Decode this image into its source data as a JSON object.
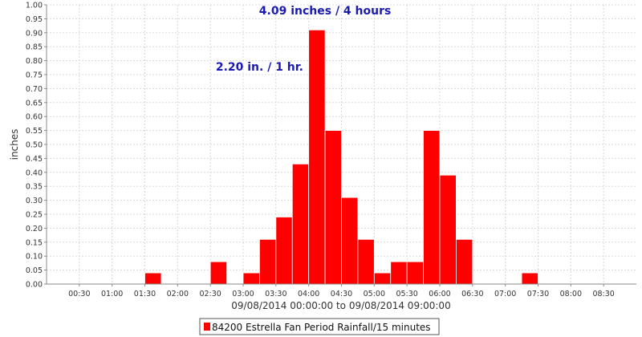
{
  "chart_data": {
    "type": "bar",
    "title": "",
    "xlabel": "09/08/2014 00:00:00 to 09/08/2014 09:00:00",
    "ylabel": "inches",
    "ylim": [
      0,
      1.0
    ],
    "yticks": [
      "0.00",
      "0.05",
      "0.10",
      "0.15",
      "0.20",
      "0.25",
      "0.30",
      "0.35",
      "0.40",
      "0.45",
      "0.50",
      "0.55",
      "0.60",
      "0.65",
      "0.70",
      "0.75",
      "0.80",
      "0.85",
      "0.90",
      "0.95",
      "1.00"
    ],
    "xticks": [
      "00:30",
      "01:00",
      "01:30",
      "02:00",
      "02:30",
      "03:00",
      "03:30",
      "04:00",
      "04:30",
      "05:00",
      "05:30",
      "06:00",
      "06:30",
      "07:00",
      "07:30",
      "08:00",
      "08:30"
    ],
    "x_start": "00:00",
    "x_end": "09:00",
    "interval": "15 minutes",
    "grid": true,
    "bar_color": "#ff0000",
    "series": [
      {
        "name": "84200 Estrella Fan Period Rainfall/15 minutes",
        "points": [
          {
            "time": "01:30",
            "value": 0.04
          },
          {
            "time": "02:30",
            "value": 0.08
          },
          {
            "time": "03:00",
            "value": 0.04
          },
          {
            "time": "03:15",
            "value": 0.16
          },
          {
            "time": "03:30",
            "value": 0.24
          },
          {
            "time": "03:45",
            "value": 0.43
          },
          {
            "time": "04:00",
            "value": 0.91
          },
          {
            "time": "04:15",
            "value": 0.55
          },
          {
            "time": "04:30",
            "value": 0.31
          },
          {
            "time": "04:45",
            "value": 0.16
          },
          {
            "time": "05:00",
            "value": 0.04
          },
          {
            "time": "05:15",
            "value": 0.08
          },
          {
            "time": "05:30",
            "value": 0.08
          },
          {
            "time": "05:45",
            "value": 0.55
          },
          {
            "time": "06:00",
            "value": 0.39
          },
          {
            "time": "06:15",
            "value": 0.16
          },
          {
            "time": "07:15",
            "value": 0.04
          }
        ]
      }
    ],
    "annotations": [
      {
        "text": "4.09 inches / 4 hours",
        "time": "04:15",
        "value": 0.965
      },
      {
        "text": "2.20 in. / 1 hr.",
        "time": "03:15",
        "value": 0.765
      }
    ],
    "legend": {
      "placement": "bottom",
      "entries": [
        "84200 Estrella Fan Period Rainfall/15 minutes"
      ]
    }
  }
}
